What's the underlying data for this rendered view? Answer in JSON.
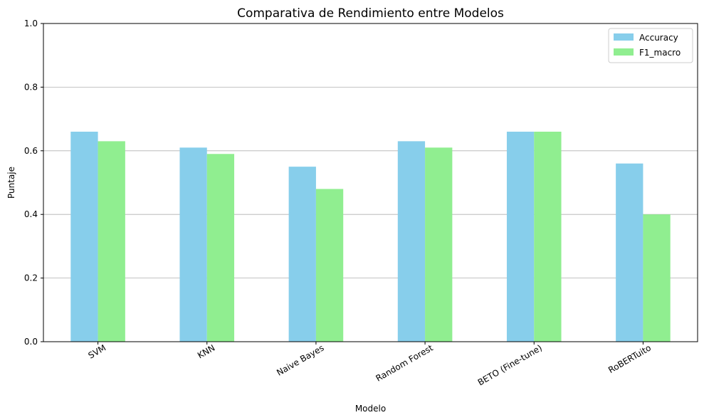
{
  "chart_data": {
    "type": "bar",
    "title": "Comparativa de Rendimiento entre Modelos",
    "xlabel": "Modelo",
    "ylabel": "Puntaje",
    "ylim": [
      0,
      1.0
    ],
    "yticks": [
      "0.0",
      "0.2",
      "0.4",
      "0.6",
      "0.8",
      "1.0"
    ],
    "ytick_values": [
      0,
      0.2,
      0.4,
      0.6,
      0.8,
      1.0
    ],
    "grid": "y-major",
    "legend_position": "top-right",
    "categories": [
      "SVM",
      "KNN",
      "Naive Bayes",
      "Random Forest",
      "BETO (Fine-tune)",
      "RoBERTuito"
    ],
    "series": [
      {
        "name": "Accuracy",
        "color": "#87ceeb",
        "values": [
          0.66,
          0.61,
          0.55,
          0.63,
          0.66,
          0.56
        ]
      },
      {
        "name": "F1_macro",
        "color": "#90ee90",
        "values": [
          0.63,
          0.59,
          0.48,
          0.61,
          0.66,
          0.4
        ]
      }
    ]
  }
}
